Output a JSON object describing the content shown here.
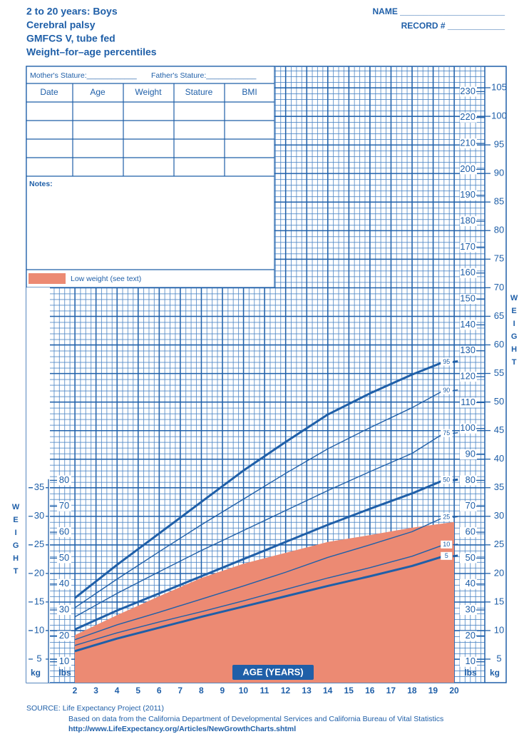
{
  "header": {
    "title_lines": [
      "2 to 20 years: Boys",
      "Cerebral palsy",
      "GMFCS V, tube fed",
      "Weight–for–age percentiles"
    ],
    "name": "NAME ______________________",
    "record": "RECORD # ____________"
  },
  "form": {
    "mother": "Mother's Stature:____________",
    "father": "Father's Stature:____________",
    "columns": [
      "Date",
      "Age",
      "Weight",
      "Stature",
      "BMI"
    ],
    "notes": "Notes:"
  },
  "chart_data": {
    "type": "line",
    "x_label": "AGE (YEARS)",
    "y_label": "WEIGHT",
    "y_unit": "kg",
    "y2_unit": "lbs",
    "xlim": [
      2,
      20
    ],
    "xticks": [
      2,
      3,
      4,
      5,
      6,
      7,
      8,
      9,
      10,
      11,
      12,
      13,
      14,
      15,
      16,
      17,
      18,
      19,
      20
    ],
    "ylim": [
      5,
      105
    ],
    "yticks": [
      5,
      10,
      15,
      20,
      25,
      30,
      35,
      40,
      45,
      50,
      55,
      60,
      65,
      70,
      75,
      80,
      85,
      90,
      95,
      100,
      105
    ],
    "yticks_left": [
      5,
      10,
      15,
      20,
      25,
      30,
      35
    ],
    "y2lim": [
      11.02,
      231.49
    ],
    "y2ticks": [
      10,
      20,
      30,
      40,
      50,
      60,
      70,
      80,
      90,
      100,
      110,
      120,
      130,
      140,
      150,
      160,
      170,
      180,
      190,
      200,
      210,
      220,
      230
    ],
    "y2ticks_left": [
      10,
      20,
      30,
      40,
      50,
      60,
      70,
      80
    ],
    "grid": true,
    "x": [
      2,
      4,
      6,
      8,
      10,
      12,
      14,
      16,
      18,
      19.5
    ],
    "series": [
      {
        "name": "95",
        "color": "#1f5fa8",
        "values": [
          15.7,
          21.5,
          27,
          32.5,
          38,
          43,
          47.8,
          51.5,
          54.8,
          57
        ]
      },
      {
        "name": "90",
        "color": "#1f5fa8",
        "values": [
          14,
          19,
          23.8,
          28.5,
          33,
          37.5,
          41.8,
          45.5,
          49,
          52
        ]
      },
      {
        "name": "75",
        "color": "#1f5fa8",
        "values": [
          12.4,
          16.5,
          20.3,
          24,
          27.5,
          31,
          34.5,
          37.8,
          41,
          44.5
        ]
      },
      {
        "name": "50",
        "color": "#1f5fa8",
        "values": [
          10.2,
          13.5,
          16.5,
          19.5,
          22.5,
          25.5,
          28.5,
          31.3,
          34,
          36.3
        ]
      },
      {
        "name": "25",
        "color": "#1f5fa8",
        "values": [
          8.4,
          11,
          13.2,
          15.5,
          17.8,
          20.2,
          22.8,
          25,
          27.3,
          29.8
        ]
      },
      {
        "name": "10",
        "color": "#1f5fa8",
        "values": [
          7.4,
          9.6,
          11.5,
          13.3,
          15.2,
          17.2,
          19.2,
          21,
          23,
          25
        ]
      },
      {
        "name": "5",
        "color": "#1f5fa8",
        "values": [
          6.4,
          8.6,
          10.5,
          12.4,
          14.2,
          16,
          17.8,
          19.5,
          21.3,
          23
        ]
      }
    ],
    "bold_series": [
      "95",
      "50",
      "5"
    ],
    "area": {
      "name": "Low weight (see text)",
      "color": "#ec8a73",
      "x": [
        2,
        4,
        6,
        8,
        10,
        12,
        14,
        16,
        18,
        20
      ],
      "values": [
        9.2,
        12.7,
        16,
        19.2,
        21.7,
        23.6,
        25.5,
        26.7,
        28,
        29
      ]
    },
    "source_lines": [
      "SOURCE:  Life Expectancy Project (2011)",
      "Based on data from the California Department of Developmental Services and California Bureau of Vital Statistics",
      "http://www.LifeExpectancy.org/Articles/NewGrowthCharts.shtml"
    ]
  }
}
